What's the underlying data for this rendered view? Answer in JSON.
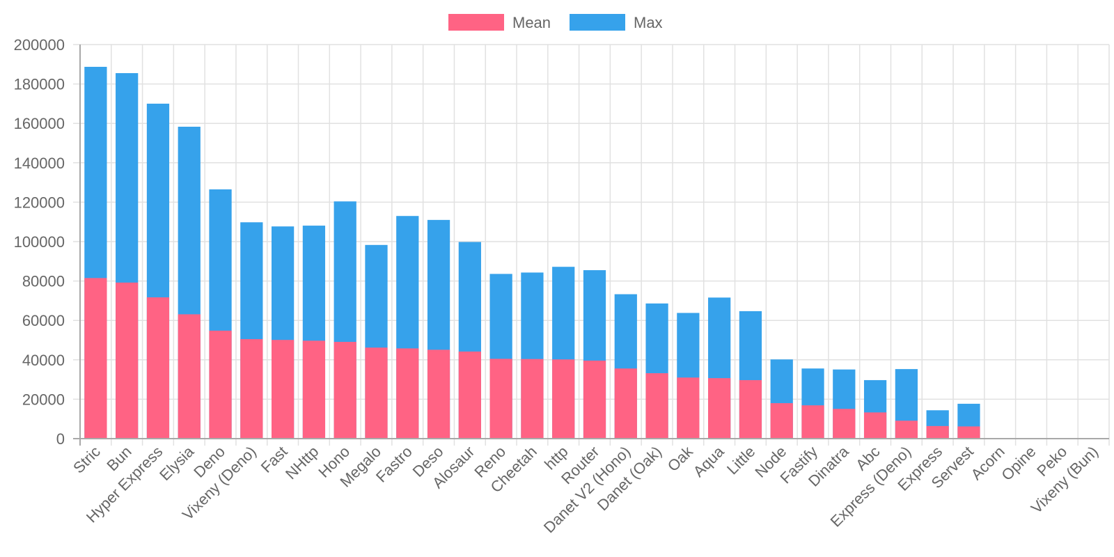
{
  "chart_data": {
    "type": "bar",
    "title": "",
    "xlabel": "",
    "ylabel": "",
    "ylim": [
      0,
      200000
    ],
    "y_ticks": [
      "0",
      "20000",
      "40000",
      "60000",
      "80000",
      "100000",
      "120000",
      "140000",
      "160000",
      "180000",
      "200000"
    ],
    "y_tick_values": [
      0,
      20000,
      40000,
      60000,
      80000,
      100000,
      120000,
      140000,
      160000,
      180000,
      200000
    ],
    "grid": true,
    "legend_position": "top-center",
    "categories": [
      "Stric",
      "Bun",
      "Hyper Express",
      "Elysia",
      "Deno",
      "Vixeny (Deno)",
      "Fast",
      "NHttp",
      "Hono",
      "Megalo",
      "Fastro",
      "Deso",
      "Alosaur",
      "Reno",
      "Cheetah",
      "http",
      "Router",
      "Danet V2 (Hono)",
      "Danet (Oak)",
      "Oak",
      "Aqua",
      "Little",
      "Node",
      "Fastify",
      "Dinatra",
      "Abc",
      "Express (Deno)",
      "Express",
      "Servest",
      "Acorn",
      "Opine",
      "Peko",
      "Vixeny (Bun)"
    ],
    "series": [
      {
        "name": "Mean",
        "color": "#ff6384",
        "values": [
          81500,
          79200,
          71700,
          63100,
          54800,
          50500,
          50100,
          49700,
          49100,
          46200,
          45800,
          45100,
          44200,
          40500,
          40400,
          40200,
          39600,
          35600,
          33200,
          31000,
          30700,
          29700,
          18000,
          16900,
          15100,
          13300,
          9100,
          6400,
          6200,
          0,
          0,
          0,
          0
        ]
      },
      {
        "name": "Max",
        "color": "#36a2eb",
        "values": [
          188700,
          185500,
          170000,
          158300,
          126500,
          109800,
          107700,
          108100,
          120400,
          98300,
          113000,
          111000,
          99800,
          83600,
          84300,
          87200,
          85500,
          73300,
          68600,
          63800,
          71600,
          64700,
          40200,
          35600,
          35100,
          29700,
          35300,
          14400,
          17700,
          0,
          0,
          0,
          0
        ]
      }
    ]
  }
}
